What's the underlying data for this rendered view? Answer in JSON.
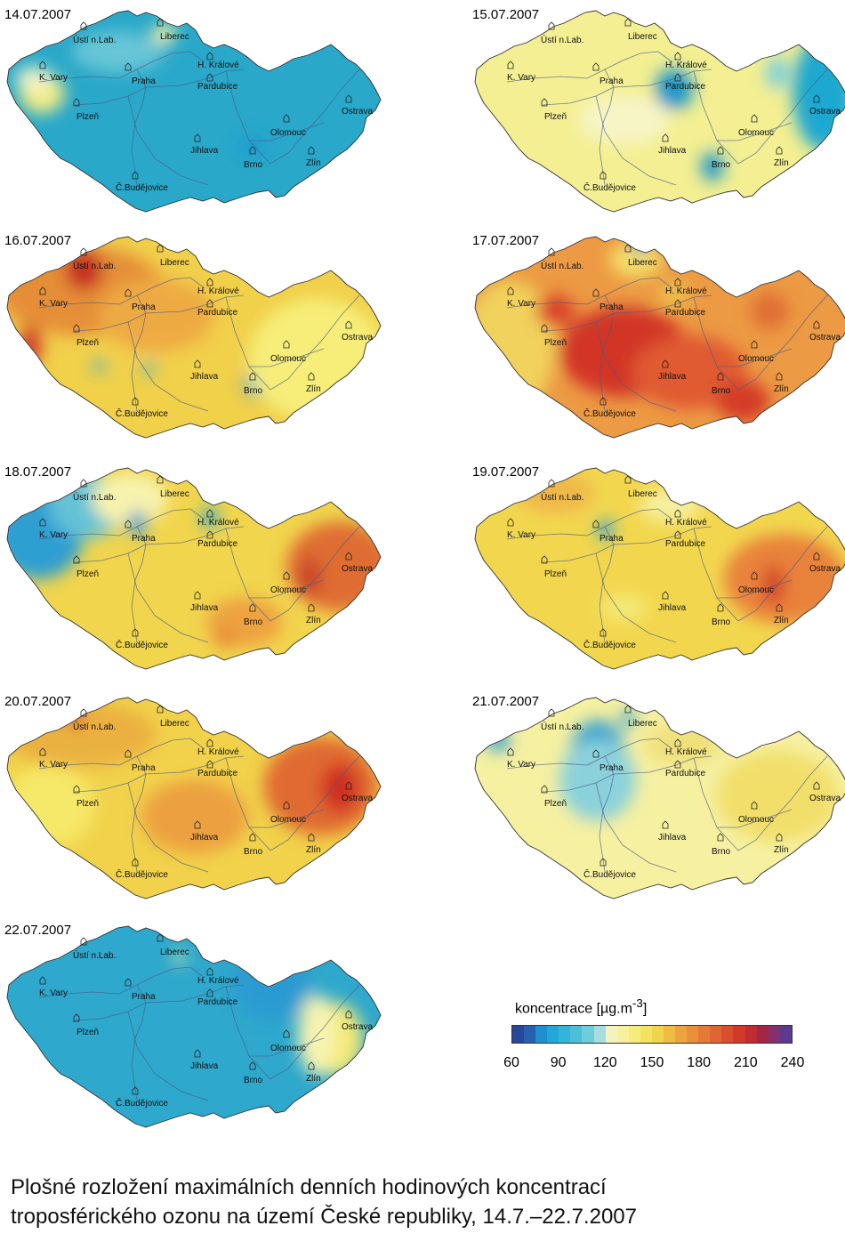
{
  "maps": [
    {
      "date": "14.07.2007",
      "base": "#29a8c9",
      "blobs": [
        [
          "#f4ec82",
          0.1,
          0.42,
          0.06,
          0.1
        ],
        [
          "#67c6d6",
          0.3,
          0.22,
          0.12,
          0.1
        ],
        [
          "#f7f2a0",
          0.42,
          0.13,
          0.03,
          0.05
        ],
        [
          "#1f9fd0",
          0.65,
          0.68,
          0.04,
          0.06
        ],
        [
          "#eef2c8",
          0.08,
          0.35,
          0.05,
          0.06
        ]
      ]
    },
    {
      "date": "15.07.2007",
      "base": "#f3ef92",
      "blobs": [
        [
          "#1d96cc",
          0.53,
          0.4,
          0.05,
          0.1
        ],
        [
          "#1d96cc",
          0.63,
          0.78,
          0.03,
          0.07
        ],
        [
          "#1ea8d0",
          0.92,
          0.42,
          0.08,
          0.28
        ],
        [
          "#7dd0dc",
          0.8,
          0.32,
          0.03,
          0.08
        ],
        [
          "#f7f5c6",
          0.4,
          0.55,
          0.12,
          0.12
        ]
      ]
    },
    {
      "date": "16.07.2007",
      "base": "#f1d04a",
      "blobs": [
        [
          "#e58e37",
          0.2,
          0.28,
          0.22,
          0.22
        ],
        [
          "#c52d24",
          0.21,
          0.18,
          0.05,
          0.1
        ],
        [
          "#cf3a29",
          0.07,
          0.55,
          0.03,
          0.1
        ],
        [
          "#24a4d3",
          0.66,
          0.73,
          0.03,
          0.07
        ],
        [
          "#3aafd8",
          0.25,
          0.65,
          0.015,
          0.03
        ],
        [
          "#3aafd8",
          0.38,
          0.66,
          0.015,
          0.03
        ],
        [
          "#f6ee79",
          0.82,
          0.62,
          0.18,
          0.3
        ],
        [
          "#eeaa42",
          0.4,
          0.4,
          0.15,
          0.18
        ]
      ]
    },
    {
      "date": "17.07.2007",
      "base": "#ec9a43",
      "blobs": [
        [
          "#d23427",
          0.4,
          0.58,
          0.17,
          0.22
        ],
        [
          "#e05a30",
          0.57,
          0.68,
          0.15,
          0.18
        ],
        [
          "#d43b28",
          0.71,
          0.82,
          0.07,
          0.1
        ],
        [
          "#f1d25b",
          0.1,
          0.55,
          0.12,
          0.32
        ],
        [
          "#f4de67",
          0.43,
          0.13,
          0.07,
          0.09
        ],
        [
          "#2b9fd1",
          0.44,
          0.07,
          0.015,
          0.04
        ],
        [
          "#df6e35",
          0.78,
          0.38,
          0.05,
          0.09
        ],
        [
          "#efc24b",
          0.53,
          0.3,
          0.04,
          0.06
        ],
        [
          "#d9432c",
          0.22,
          0.38,
          0.05,
          0.08
        ]
      ]
    },
    {
      "date": "18.07.2007",
      "base": "#f1d54d",
      "blobs": [
        [
          "#2d9fd1",
          0.09,
          0.34,
          0.12,
          0.22
        ],
        [
          "#63c2d6",
          0.22,
          0.2,
          0.1,
          0.16
        ],
        [
          "#f7f3ad",
          0.33,
          0.17,
          0.1,
          0.13
        ],
        [
          "#1f9cd1",
          0.35,
          0.29,
          0.025,
          0.06
        ],
        [
          "#1f9cd1",
          0.54,
          0.26,
          0.02,
          0.05
        ],
        [
          "#df6d32",
          0.88,
          0.5,
          0.14,
          0.22
        ],
        [
          "#c9442a",
          0.8,
          0.55,
          0.03,
          0.1
        ],
        [
          "#eea240",
          0.63,
          0.77,
          0.1,
          0.12
        ],
        [
          "#e78a37",
          0.58,
          0.85,
          0.03,
          0.05
        ]
      ]
    },
    {
      "date": "19.07.2007",
      "base": "#f2d74e",
      "blobs": [
        [
          "#e9823a",
          0.82,
          0.56,
          0.16,
          0.22
        ],
        [
          "#d3462c",
          0.79,
          0.59,
          0.03,
          0.1
        ],
        [
          "#2b9fd1",
          0.35,
          0.32,
          0.02,
          0.05
        ],
        [
          "#f5ea7a",
          0.4,
          0.7,
          0.06,
          0.06
        ],
        [
          "#efb849",
          0.22,
          0.14,
          0.1,
          0.1
        ],
        [
          "#f7f0a0",
          0.52,
          0.2,
          0.08,
          0.08
        ]
      ]
    },
    {
      "date": "20.07.2007",
      "base": "#f1d24a",
      "blobs": [
        [
          "#e06b33",
          0.83,
          0.45,
          0.15,
          0.24
        ],
        [
          "#cf2f24",
          0.88,
          0.46,
          0.05,
          0.12
        ],
        [
          "#ebb140",
          0.2,
          0.2,
          0.2,
          0.16
        ],
        [
          "#cf3a29",
          0.19,
          0.12,
          0.02,
          0.04
        ],
        [
          "#eca03f",
          0.5,
          0.6,
          0.14,
          0.18
        ],
        [
          "#f6e867",
          0.12,
          0.55,
          0.12,
          0.2
        ]
      ]
    },
    {
      "date": "21.07.2007",
      "base": "#f6f0a1",
      "blobs": [
        [
          "#2e9fd0",
          0.33,
          0.28,
          0.07,
          0.15
        ],
        [
          "#8ad1db",
          0.33,
          0.42,
          0.1,
          0.2
        ],
        [
          "#2f9fd3",
          0.07,
          0.23,
          0.03,
          0.05
        ],
        [
          "#2f9fd3",
          0.41,
          0.12,
          0.02,
          0.04
        ],
        [
          "#f2df6a",
          0.8,
          0.5,
          0.16,
          0.22
        ],
        [
          "#efe07a",
          0.55,
          0.25,
          0.1,
          0.1
        ]
      ]
    },
    {
      "date": "22.07.2007",
      "base": "#2ea8cc",
      "blobs": [
        [
          "#f4ea75",
          0.87,
          0.57,
          0.07,
          0.18
        ],
        [
          "#f7f3b0",
          0.82,
          0.55,
          0.05,
          0.2
        ],
        [
          "#2a9bd2",
          0.7,
          0.3,
          0.1,
          0.18
        ],
        [
          "#f7f2a0",
          0.11,
          0.9,
          0.015,
          0.03
        ],
        [
          "#f7f2a0",
          0.46,
          0.17,
          0.015,
          0.03
        ],
        [
          "#f7f2a0",
          0.22,
          0.93,
          0.015,
          0.03
        ]
      ]
    }
  ],
  "cities": [
    {
      "name": "Ústí n.Lab.",
      "type": "city"
    },
    {
      "name": "Liberec",
      "type": "city"
    },
    {
      "name": "K. Vary",
      "type": "city"
    },
    {
      "name": "Praha",
      "type": "capital"
    },
    {
      "name": "H. Králové",
      "type": "city"
    },
    {
      "name": "Pardubice",
      "type": "city"
    },
    {
      "name": "Plzeň",
      "type": "city"
    },
    {
      "name": "Ostrava",
      "type": "city"
    },
    {
      "name": "Olomouc",
      "type": "city"
    },
    {
      "name": "Jihlava",
      "type": "city"
    },
    {
      "name": "Zlín",
      "type": "city"
    },
    {
      "name": "Brno",
      "type": "city"
    },
    {
      "name": "Č.Budějovice",
      "type": "city"
    }
  ],
  "legend": {
    "title": "koncentrace [µg.m",
    "unit_exponent": "-3",
    "title_end": "]",
    "colors": [
      "#27489a",
      "#2760ad",
      "#1f8fd0",
      "#22a7da",
      "#35b4db",
      "#4bc0d8",
      "#6fcdd9",
      "#a5dde0",
      "#f4f3c0",
      "#f6f19c",
      "#f5ec7c",
      "#f3e35e",
      "#f0d449",
      "#efbd42",
      "#eca53e",
      "#e9903a",
      "#e47a36",
      "#df6532",
      "#da4d2f",
      "#d3392a",
      "#bf2c33",
      "#a42545",
      "#862f6e",
      "#5b3a8f"
    ],
    "ticks": [
      "60",
      "90",
      "120",
      "150",
      "180",
      "210",
      "240"
    ],
    "min": 60,
    "max": 240
  },
  "caption": {
    "line1": "Plošné rozložení maximálních denních hodinových koncentrací",
    "line2": "troposférického ozonu na území České republiky, 14.7.–22.7.2007"
  }
}
